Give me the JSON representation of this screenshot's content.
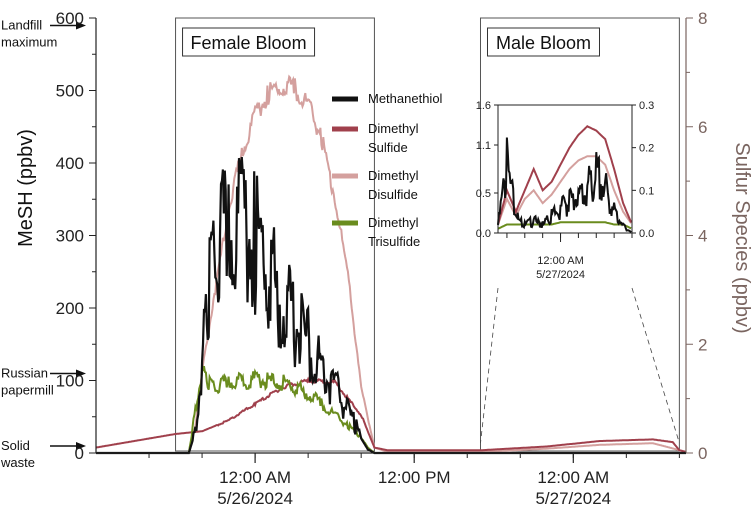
{
  "chart_data": {
    "type": "line",
    "title": "",
    "xlabel": "",
    "ylabel": "MeSH (ppbv)",
    "ylabel_right": "Sulfur Species (ppbv)",
    "ylim": [
      0,
      600
    ],
    "ylim_right": [
      0,
      8
    ],
    "x_hours_span": [
      -12,
      32.5
    ],
    "x_ticks": [
      {
        "hour": 0,
        "label_time": "12:00 AM",
        "label_date": "5/26/2024"
      },
      {
        "hour": 12,
        "label_time": "12:00 PM",
        "label_date": ""
      },
      {
        "hour": 24,
        "label_time": "12:00 AM",
        "label_date": "5/27/2024"
      }
    ],
    "y_ticks": [
      0,
      100,
      200,
      300,
      400,
      500,
      600
    ],
    "y_ticks_right": [
      0,
      2,
      4,
      6,
      8
    ],
    "annotations": [
      {
        "text_lines": [
          "Landfill",
          "maximum"
        ],
        "y": 580
      },
      {
        "text_lines": [
          "Russian",
          "papermill"
        ],
        "y": 100
      },
      {
        "text_lines": [
          "Solid",
          "waste"
        ],
        "y": 0
      }
    ],
    "regions": [
      {
        "label": "Female Bloom",
        "x_start": -6,
        "x_end": 9
      },
      {
        "label": "Male Bloom",
        "x_start": 17,
        "x_end": 32
      }
    ],
    "legend": {
      "placement": "center",
      "entries": [
        {
          "lines": [
            "Methanethiol"
          ],
          "color": "#111111"
        },
        {
          "lines": [
            "Dimethyl",
            "Sulfide"
          ],
          "color": "#a0404c"
        },
        {
          "lines": [
            "Dimethyl",
            "Disulfide"
          ],
          "color": "#d4a09e"
        },
        {
          "lines": [
            "Dimethyl",
            "Trisulfide"
          ],
          "color": "#6a8c1e"
        }
      ]
    },
    "series": [
      {
        "name": "Methanethiol",
        "axis": "left",
        "color": "#111111",
        "x": [
          -12,
          -5,
          -4.5,
          -4,
          -3.5,
          -3,
          -2,
          -1,
          0,
          2,
          4,
          6,
          7.5,
          8,
          8.5,
          9,
          32.5
        ],
        "y": [
          0,
          0,
          30,
          120,
          230,
          280,
          300,
          310,
          290,
          210,
          150,
          90,
          40,
          20,
          5,
          0,
          0
        ]
      },
      {
        "name": "Dimethyl Sulfide",
        "axis": "right",
        "color": "#a0404c",
        "x": [
          -12,
          -6,
          -4,
          -2,
          0,
          2,
          4,
          6,
          8,
          9,
          10,
          17,
          22,
          26,
          30,
          31.5,
          32,
          32.5
        ],
        "y": [
          0.1,
          0.35,
          0.4,
          0.6,
          0.9,
          1.2,
          1.33,
          1.3,
          0.7,
          0.1,
          0.05,
          0.05,
          0.12,
          0.22,
          0.25,
          0.2,
          0.05,
          0.02
        ]
      },
      {
        "name": "Dimethyl Disulfide",
        "axis": "right",
        "color": "#d4a09e",
        "x": [
          -12,
          -5,
          -4.5,
          -4,
          -3,
          -2,
          -1,
          0,
          1,
          2,
          3,
          4,
          5,
          6,
          7,
          8,
          9,
          10,
          17,
          22,
          26,
          30,
          32.5
        ],
        "y": [
          0,
          0,
          0.5,
          1.5,
          3.0,
          4.5,
          5.5,
          6.2,
          6.6,
          6.75,
          6.7,
          6.4,
          5.8,
          4.7,
          3.3,
          1.2,
          0.1,
          0.02,
          0.02,
          0.08,
          0.15,
          0.18,
          0.02
        ]
      },
      {
        "name": "Dimethyl Trisulfide",
        "axis": "right",
        "color": "#6a8c1e",
        "x": [
          -12,
          -5,
          -4.5,
          -4,
          -3.5,
          -3,
          -2,
          0,
          2,
          4,
          5,
          6,
          7,
          8,
          8.5,
          9,
          32.5
        ],
        "y": [
          0,
          0,
          0.8,
          1.5,
          1.3,
          1.2,
          1.3,
          1.35,
          1.3,
          1.1,
          0.9,
          0.7,
          0.5,
          0.3,
          0.1,
          0,
          0
        ]
      }
    ],
    "inset": {
      "x_ticks": [
        {
          "hour": 24,
          "label_time": "12:00 AM",
          "label_date": "5/27/2024"
        }
      ],
      "y_ticks_left": [
        0.0,
        0.5,
        1.1,
        1.6
      ],
      "y_ticks_right": [
        0.0,
        0.1,
        0.2,
        0.3
      ],
      "ylim_left": [
        0,
        1.6
      ],
      "ylim_right": [
        0,
        0.3
      ],
      "series": [
        {
          "name": "Methanethiol",
          "axis": "left",
          "color": "#111111",
          "x": [
            17,
            18,
            19,
            20,
            21,
            22,
            23,
            24,
            25,
            26,
            27,
            28,
            29,
            30,
            31,
            32
          ],
          "y": [
            0.1,
            0.8,
            0.2,
            0.1,
            0.15,
            0.1,
            0.2,
            0.3,
            0.4,
            0.45,
            0.55,
            0.7,
            0.55,
            0.3,
            0.1,
            0.0
          ]
        },
        {
          "name": "Dimethyl Sulfide",
          "axis": "right",
          "color": "#a0404c",
          "x": [
            17,
            18,
            19,
            20,
            21,
            22,
            23,
            24,
            25,
            26,
            27,
            28,
            29,
            30,
            31,
            32
          ],
          "y": [
            0.02,
            0.1,
            0.05,
            0.1,
            0.15,
            0.1,
            0.12,
            0.16,
            0.2,
            0.23,
            0.25,
            0.24,
            0.22,
            0.15,
            0.07,
            0.02
          ]
        },
        {
          "name": "Dimethyl Disulfide",
          "axis": "right",
          "color": "#d4a09e",
          "x": [
            17,
            18,
            19,
            20,
            21,
            22,
            23,
            24,
            25,
            26,
            27,
            28,
            29,
            30,
            31,
            32
          ],
          "y": [
            0.02,
            0.08,
            0.04,
            0.08,
            0.1,
            0.07,
            0.09,
            0.12,
            0.15,
            0.17,
            0.18,
            0.18,
            0.16,
            0.1,
            0.05,
            0.02
          ]
        },
        {
          "name": "Dimethyl Trisulfide",
          "axis": "right",
          "color": "#6a8c1e",
          "x": [
            17,
            18,
            19,
            20,
            21,
            22,
            23,
            24,
            25,
            26,
            27,
            28,
            29,
            30,
            31,
            32
          ],
          "y": [
            0.01,
            0.02,
            0.02,
            0.02,
            0.02,
            0.02,
            0.02,
            0.025,
            0.025,
            0.025,
            0.025,
            0.025,
            0.025,
            0.02,
            0.02,
            0.01
          ]
        }
      ]
    }
  }
}
